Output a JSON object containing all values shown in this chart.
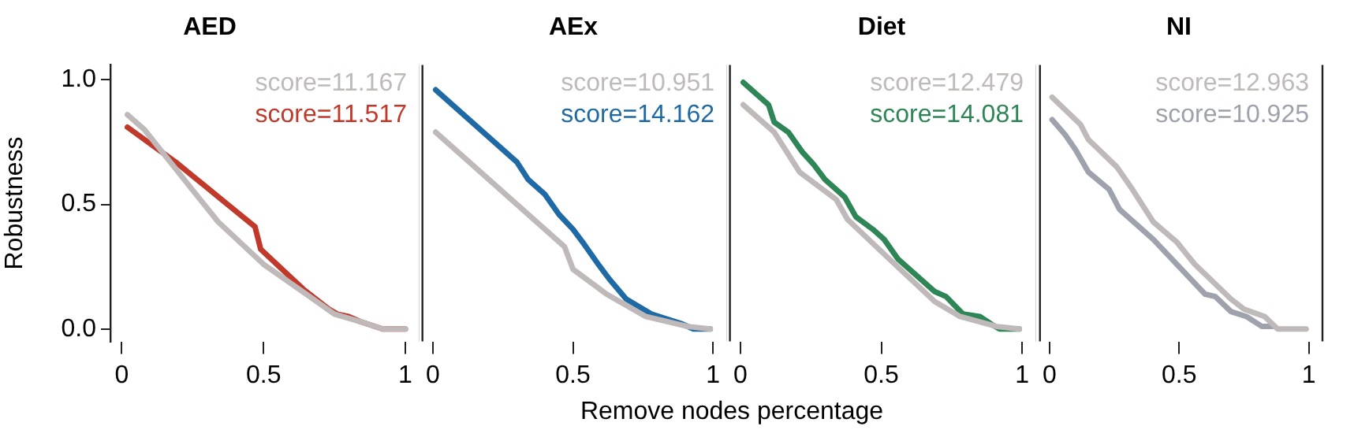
{
  "chart_data": [
    {
      "type": "line",
      "title": "AED",
      "ylabel": "Robustness",
      "legend": "top right",
      "xlim": [
        -0.04,
        1.05
      ],
      "ylim": [
        -0.05,
        1.06
      ],
      "xticks": [
        0,
        0.5,
        1
      ],
      "yticks": [
        {
          "value": 0,
          "label": "0.0"
        },
        {
          "value": 0.5,
          "label": "0.5"
        },
        {
          "value": 1,
          "label": "1.0"
        }
      ],
      "series": [
        {
          "name": "score=11.167",
          "color": "#bfb9b9",
          "x": [
            0.02,
            0.08,
            0.22,
            0.34,
            0.5,
            0.65,
            0.75,
            0.84,
            0.92,
            1.0
          ],
          "values": [
            0.86,
            0.8,
            0.6,
            0.43,
            0.26,
            0.14,
            0.06,
            0.03,
            0.0,
            0.0
          ]
        },
        {
          "name": "score=11.517",
          "color": "#c0392b",
          "x": [
            0.02,
            0.19,
            0.47,
            0.49,
            0.64,
            0.73,
            0.76,
            0.8,
            0.84,
            0.92,
            1.0
          ],
          "values": [
            0.81,
            0.67,
            0.41,
            0.32,
            0.16,
            0.08,
            0.06,
            0.05,
            0.03,
            0.0,
            0.0
          ]
        }
      ]
    },
    {
      "type": "line",
      "title": "AEx",
      "xlabel": "Remove nodes percentage",
      "legend": "top right",
      "tick_labels": "x",
      "xlim": [
        -0.04,
        1.05
      ],
      "ylim": [
        -0.05,
        1.06
      ],
      "xticks": [
        0,
        0.5,
        1
      ],
      "series": [
        {
          "name": "score=10.951",
          "color": "#bfb9b9",
          "x": [
            0.01,
            0.47,
            0.5,
            0.62,
            0.76,
            0.91,
            0.99
          ],
          "values": [
            0.79,
            0.33,
            0.24,
            0.14,
            0.05,
            0.01,
            0.0
          ]
        },
        {
          "name": "score=14.162",
          "color": "#1f6aa5",
          "x": [
            0.01,
            0.3,
            0.34,
            0.4,
            0.45,
            0.5,
            0.54,
            0.59,
            0.63,
            0.69,
            0.78,
            0.89,
            0.93,
            0.99
          ],
          "values": [
            0.96,
            0.67,
            0.6,
            0.54,
            0.46,
            0.4,
            0.34,
            0.26,
            0.2,
            0.12,
            0.06,
            0.02,
            0.0,
            0.0
          ]
        }
      ]
    },
    {
      "type": "line",
      "title": "Diet",
      "legend": "top right",
      "tick_labels": "x",
      "xlim": [
        -0.04,
        1.05
      ],
      "ylim": [
        -0.05,
        1.06
      ],
      "xticks": [
        0,
        0.5,
        1
      ],
      "series": [
        {
          "name": "score=12.479",
          "color": "#bfb9b9",
          "x": [
            0.01,
            0.12,
            0.21,
            0.34,
            0.38,
            0.52,
            0.69,
            0.78,
            0.91,
            0.99
          ],
          "values": [
            0.9,
            0.79,
            0.63,
            0.52,
            0.44,
            0.29,
            0.11,
            0.05,
            0.01,
            0.0
          ]
        },
        {
          "name": "score=14.081",
          "color": "#2e8555",
          "x": [
            0.01,
            0.1,
            0.12,
            0.17,
            0.22,
            0.26,
            0.3,
            0.37,
            0.41,
            0.47,
            0.51,
            0.56,
            0.63,
            0.69,
            0.73,
            0.79,
            0.85,
            0.89,
            0.92,
            0.99
          ],
          "values": [
            0.99,
            0.9,
            0.83,
            0.79,
            0.71,
            0.66,
            0.6,
            0.53,
            0.45,
            0.4,
            0.36,
            0.28,
            0.21,
            0.15,
            0.13,
            0.06,
            0.05,
            0.02,
            0.0,
            0.0
          ]
        }
      ]
    },
    {
      "type": "line",
      "title": "NI",
      "legend": "top right",
      "tick_labels": "x",
      "xlim": [
        -0.04,
        1.05
      ],
      "ylim": [
        -0.05,
        1.06
      ],
      "xticks": [
        0,
        0.5,
        1
      ],
      "series": [
        {
          "name": "score=12.963",
          "color": "#bfb9b9",
          "x": [
            0.01,
            0.12,
            0.15,
            0.26,
            0.32,
            0.4,
            0.49,
            0.56,
            0.7,
            0.75,
            0.83,
            0.88,
            0.99
          ],
          "values": [
            0.93,
            0.82,
            0.76,
            0.65,
            0.56,
            0.43,
            0.35,
            0.26,
            0.12,
            0.08,
            0.05,
            0.0,
            0.0
          ]
        },
        {
          "name": "score=10.925",
          "color": "#9ea2ac",
          "x": [
            0.01,
            0.06,
            0.1,
            0.15,
            0.23,
            0.27,
            0.4,
            0.6,
            0.64,
            0.7,
            0.76,
            0.82,
            0.86
          ],
          "values": [
            0.84,
            0.78,
            0.72,
            0.63,
            0.56,
            0.48,
            0.36,
            0.14,
            0.13,
            0.07,
            0.05,
            0.01,
            0.01
          ]
        }
      ]
    }
  ]
}
